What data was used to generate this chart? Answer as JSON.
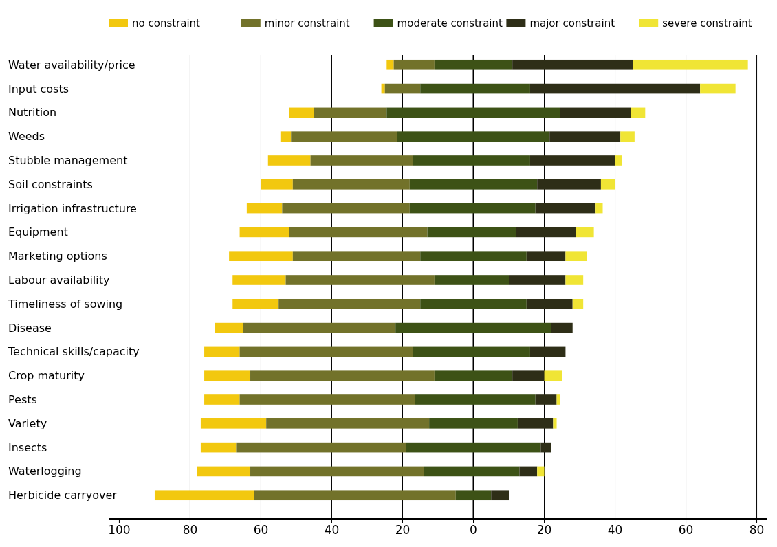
{
  "chart_data": {
    "type": "bar",
    "orientation": "horizontal",
    "categories": [
      "Water availability/price",
      "Input costs",
      "Nutrition",
      "Weeds",
      "Stubble management",
      "Soil constraints",
      "Irrigation infrastructure",
      "Equipment",
      "Marketing options",
      "Labour availability",
      "Timeliness of sowing",
      "Disease",
      "Technical skills/capacity",
      "Crop maturity",
      "Pests",
      "Variety",
      "Insects",
      "Waterlogging",
      "Herbicide carryover"
    ],
    "series": [
      {
        "name": "no constraint",
        "color": "#f2c80f",
        "base": [
          -24.5,
          -26,
          -52,
          -54.5,
          -58,
          -60,
          -64,
          -66,
          -69,
          -68,
          -68,
          -73,
          -76,
          -76,
          -76,
          -77,
          -77,
          -78,
          -90
        ],
        "values": [
          2,
          1,
          7,
          3,
          12,
          9,
          10,
          14,
          18,
          15,
          13,
          8,
          10,
          13,
          10,
          18.5,
          10,
          15,
          28
        ]
      },
      {
        "name": "minor constraint",
        "color": "#72722a",
        "base": [
          -22.5,
          -25,
          -45,
          -51.5,
          -46,
          -51,
          -54,
          -52,
          -51,
          -53,
          -55,
          -65,
          -66,
          -63,
          -66,
          -58.5,
          -67,
          -63,
          -62
        ],
        "values": [
          11.5,
          10,
          20.5,
          30,
          29,
          33,
          36,
          39,
          36,
          42,
          40,
          43,
          49,
          52,
          49.5,
          46,
          48,
          49,
          57
        ]
      },
      {
        "name": "moderate constraint",
        "color": "#3d5216",
        "base": [
          -11,
          -15,
          -24.5,
          -21.5,
          -17,
          -18,
          -18,
          -13,
          -15,
          -11,
          -15,
          -22,
          -17,
          -11,
          -16.5,
          -12.5,
          -19,
          -14,
          -5
        ],
        "values": [
          22,
          31,
          49,
          43,
          33,
          36,
          35.5,
          25,
          30,
          21,
          30,
          44,
          33,
          22,
          34,
          25,
          38,
          27,
          10
        ]
      },
      {
        "name": "major constraint",
        "color": "#2e2e17",
        "base": [
          11,
          16,
          24.5,
          21.5,
          16,
          18,
          17.5,
          12,
          15,
          10,
          15,
          22,
          16,
          11,
          17.5,
          12.5,
          19,
          13,
          5
        ],
        "values": [
          34,
          48,
          20,
          20,
          24,
          18,
          17,
          17,
          11,
          16,
          13,
          6,
          10,
          9,
          6,
          10,
          3,
          5,
          5
        ]
      },
      {
        "name": "severe constraint",
        "color": "#f0e535",
        "base": [
          45,
          64,
          44.5,
          41.5,
          40,
          36,
          34.5,
          29,
          26,
          26,
          28,
          null,
          null,
          20,
          23.5,
          22.5,
          null,
          18,
          null
        ],
        "values": [
          32.5,
          10,
          4,
          4,
          2,
          4,
          2,
          5,
          6,
          5,
          3,
          null,
          null,
          5,
          1,
          1,
          null,
          2,
          null
        ]
      }
    ],
    "xlim": [
      -103,
      83
    ],
    "xticks": [
      {
        "value": -100,
        "label": "100"
      },
      {
        "value": -80,
        "label": "80"
      },
      {
        "value": -60,
        "label": "60"
      },
      {
        "value": -40,
        "label": "40"
      },
      {
        "value": -20,
        "label": "20"
      },
      0,
      20,
      40,
      60,
      80
    ],
    "grid": "x",
    "legend": "top"
  }
}
